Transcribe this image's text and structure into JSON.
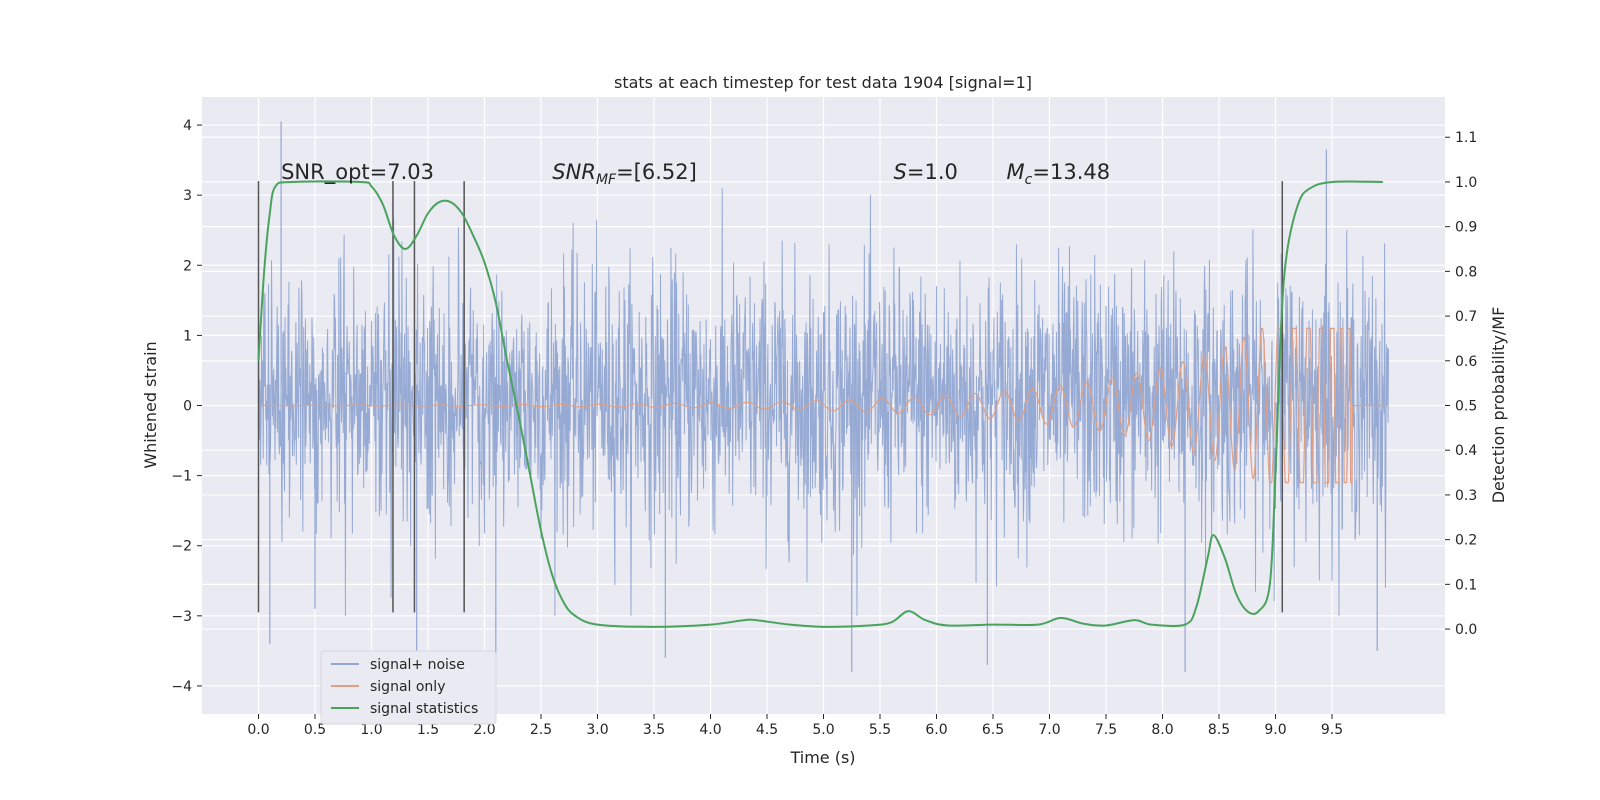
{
  "chart_data": {
    "type": "line",
    "title": "stats at each timestep for test data 1904 [signal=1]",
    "xlabel": "Time (s)",
    "ylabel_left": "Whitened strain",
    "ylabel_right": "Detection probability/MF",
    "xlim": [
      -0.5,
      10.5
    ],
    "ylim_left": [
      -4.4,
      4.4
    ],
    "ylim_right": [
      -0.19,
      1.19
    ],
    "x_ticks": [
      "0.0",
      "0.5",
      "1.0",
      "1.5",
      "2.0",
      "2.5",
      "3.0",
      "3.5",
      "4.0",
      "4.5",
      "5.0",
      "5.5",
      "6.0",
      "6.5",
      "7.0",
      "7.5",
      "8.0",
      "8.5",
      "9.0",
      "9.5"
    ],
    "y_ticks_left": [
      "4",
      "3",
      "2",
      "1",
      "0",
      "−1",
      "−2",
      "−3",
      "−4"
    ],
    "y_ticks_right": [
      "1.1",
      "1.0",
      "0.9",
      "0.8",
      "0.7",
      "0.6",
      "0.5",
      "0.4",
      "0.3",
      "0.2",
      "0.1",
      "0.0"
    ],
    "grid": true,
    "legend_position": "lower-left",
    "annotations": [
      {
        "id": "snr-opt",
        "text": "SNR_opt=7.03",
        "x": 0.2,
        "y": 3.2
      },
      {
        "id": "snr-mf",
        "main": "SNR",
        "sub": "MF",
        "rest": "=[6.52]",
        "x": 2.6,
        "y": 3.2
      },
      {
        "id": "s-value",
        "main": "S",
        "rest": "=1.0",
        "x": 5.62,
        "y": 3.2
      },
      {
        "id": "mc-value",
        "main": "M",
        "sub": "c",
        "rest": "=13.48",
        "x": 6.62,
        "y": 3.2
      }
    ],
    "vertical_lines": [
      0.0,
      1.19,
      1.38,
      1.82,
      9.06
    ],
    "vertical_line_range": [
      -2.95,
      3.2
    ],
    "series": [
      {
        "name": "signal+ noise",
        "color": "#91a6d2",
        "x_range": [
          0.0,
          10.0
        ],
        "band_core": [
          -1.1,
          1.4
        ],
        "extreme_points": [
          {
            "x": 0.2,
            "y": 4.05
          },
          {
            "x": 0.1,
            "y": -3.4
          },
          {
            "x": 0.5,
            "y": -2.9
          },
          {
            "x": 1.4,
            "y": -3.9
          },
          {
            "x": 2.1,
            "y": -3.7
          },
          {
            "x": 3.6,
            "y": -3.6
          },
          {
            "x": 5.25,
            "y": -3.8
          },
          {
            "x": 6.45,
            "y": -3.7
          },
          {
            "x": 8.2,
            "y": -3.8
          },
          {
            "x": 9.45,
            "y": 3.65
          },
          {
            "x": 9.9,
            "y": -3.5
          }
        ]
      },
      {
        "name": "signal only",
        "color": "#df9f84",
        "x_range": [
          0.0,
          10.0
        ],
        "chirp_peak_time": 9.68,
        "chirp_peak_amplitude": 1.1
      },
      {
        "name": "signal statistics",
        "color": "#4aa35d",
        "axis": "right",
        "points": [
          [
            0.0,
            0.6
          ],
          [
            0.05,
            0.8
          ],
          [
            0.1,
            0.93
          ],
          [
            0.15,
            0.99
          ],
          [
            0.3,
            1.0
          ],
          [
            0.9,
            1.0
          ],
          [
            1.0,
            0.99
          ],
          [
            1.1,
            0.95
          ],
          [
            1.2,
            0.88
          ],
          [
            1.3,
            0.85
          ],
          [
            1.4,
            0.88
          ],
          [
            1.5,
            0.93
          ],
          [
            1.6,
            0.955
          ],
          [
            1.7,
            0.955
          ],
          [
            1.8,
            0.93
          ],
          [
            1.9,
            0.88
          ],
          [
            2.0,
            0.82
          ],
          [
            2.1,
            0.73
          ],
          [
            2.2,
            0.6
          ],
          [
            2.3,
            0.48
          ],
          [
            2.4,
            0.35
          ],
          [
            2.5,
            0.22
          ],
          [
            2.6,
            0.12
          ],
          [
            2.7,
            0.06
          ],
          [
            2.8,
            0.03
          ],
          [
            3.0,
            0.01
          ],
          [
            3.5,
            0.005
          ],
          [
            4.0,
            0.01
          ],
          [
            4.3,
            0.02
          ],
          [
            4.4,
            0.02
          ],
          [
            4.7,
            0.01
          ],
          [
            5.0,
            0.005
          ],
          [
            5.4,
            0.008
          ],
          [
            5.6,
            0.015
          ],
          [
            5.75,
            0.04
          ],
          [
            5.9,
            0.02
          ],
          [
            6.1,
            0.008
          ],
          [
            6.5,
            0.01
          ],
          [
            6.9,
            0.01
          ],
          [
            7.1,
            0.025
          ],
          [
            7.3,
            0.012
          ],
          [
            7.5,
            0.008
          ],
          [
            7.75,
            0.02
          ],
          [
            7.9,
            0.01
          ],
          [
            8.2,
            0.01
          ],
          [
            8.3,
            0.05
          ],
          [
            8.4,
            0.16
          ],
          [
            8.45,
            0.21
          ],
          [
            8.55,
            0.16
          ],
          [
            8.65,
            0.08
          ],
          [
            8.75,
            0.04
          ],
          [
            8.85,
            0.04
          ],
          [
            8.95,
            0.1
          ],
          [
            9.0,
            0.35
          ],
          [
            9.05,
            0.68
          ],
          [
            9.1,
            0.84
          ],
          [
            9.2,
            0.95
          ],
          [
            9.3,
            0.985
          ],
          [
            9.5,
            1.0
          ],
          [
            9.95,
            1.0
          ]
        ]
      }
    ]
  }
}
